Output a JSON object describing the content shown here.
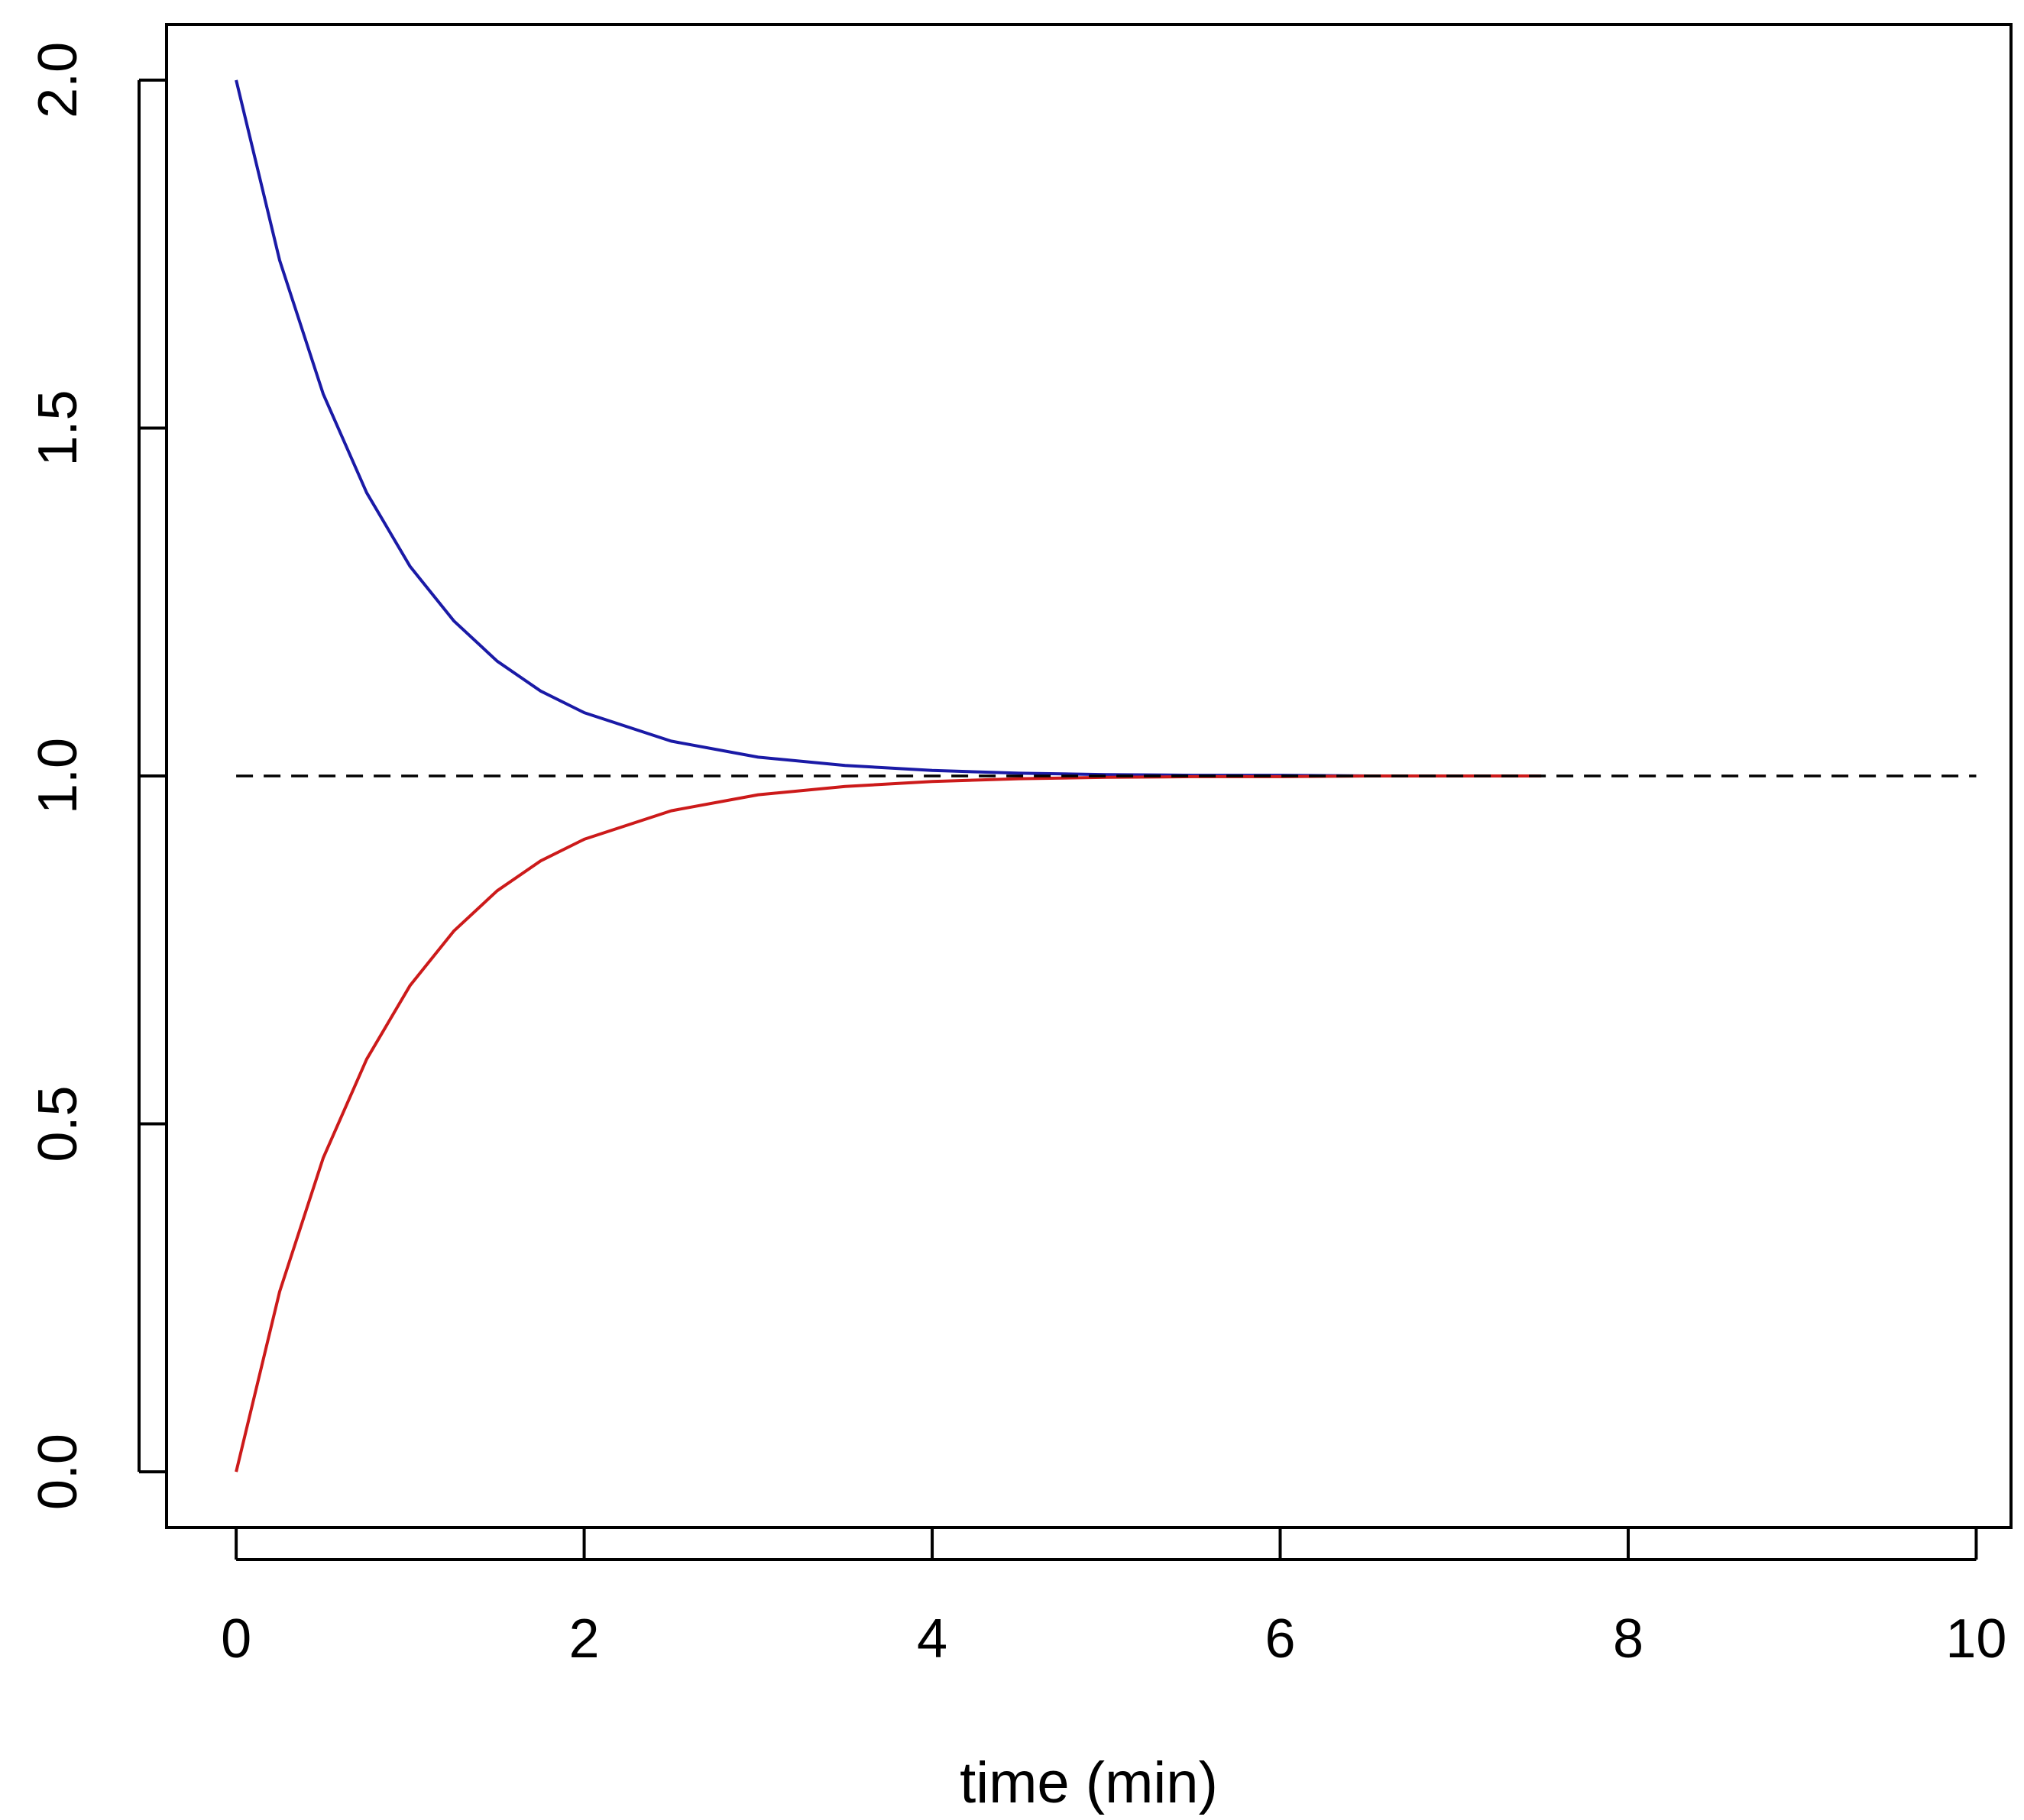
{
  "chart_data": {
    "type": "line",
    "title": "",
    "xlabel": "time (min)",
    "ylabel": "",
    "xlim": [
      -0.4,
      10.2
    ],
    "ylim": [
      -0.08,
      2.08
    ],
    "xticks": [
      0,
      2,
      4,
      6,
      8,
      10
    ],
    "xtick_labels": [
      "0",
      "2",
      "4",
      "6",
      "8",
      "10"
    ],
    "yticks": [
      0.0,
      0.5,
      1.0,
      1.5,
      2.0
    ],
    "ytick_labels": [
      "0.0",
      "0.5",
      "1.0",
      "1.5",
      "2.0"
    ],
    "grid": false,
    "legend": "none",
    "x": [
      0,
      0.25,
      0.5,
      0.75,
      1,
      1.25,
      1.5,
      1.75,
      2,
      2.5,
      3,
      3.5,
      4,
      4.5,
      5,
      5.5,
      6,
      6.5,
      7,
      7.5
    ],
    "series": [
      {
        "color": "#1a1aa6",
        "style": "solid",
        "values": [
          2.0,
          1.741,
          1.549,
          1.407,
          1.301,
          1.223,
          1.165,
          1.122,
          1.091,
          1.05,
          1.027,
          1.015,
          1.008,
          1.004,
          1.002,
          1.001,
          1.001,
          1.0,
          1.0,
          1.0
        ]
      },
      {
        "color": "#cc1a1a",
        "style": "solid",
        "values": [
          0.0,
          0.259,
          0.451,
          0.593,
          0.699,
          0.777,
          0.835,
          0.878,
          0.909,
          0.95,
          0.973,
          0.985,
          0.992,
          0.996,
          0.998,
          0.999,
          0.999,
          1.0,
          1.0,
          1.0
        ]
      },
      {
        "color": "#000000",
        "style": "dashed",
        "x": [
          0,
          10
        ],
        "values": [
          1.0,
          1.0
        ]
      }
    ]
  }
}
